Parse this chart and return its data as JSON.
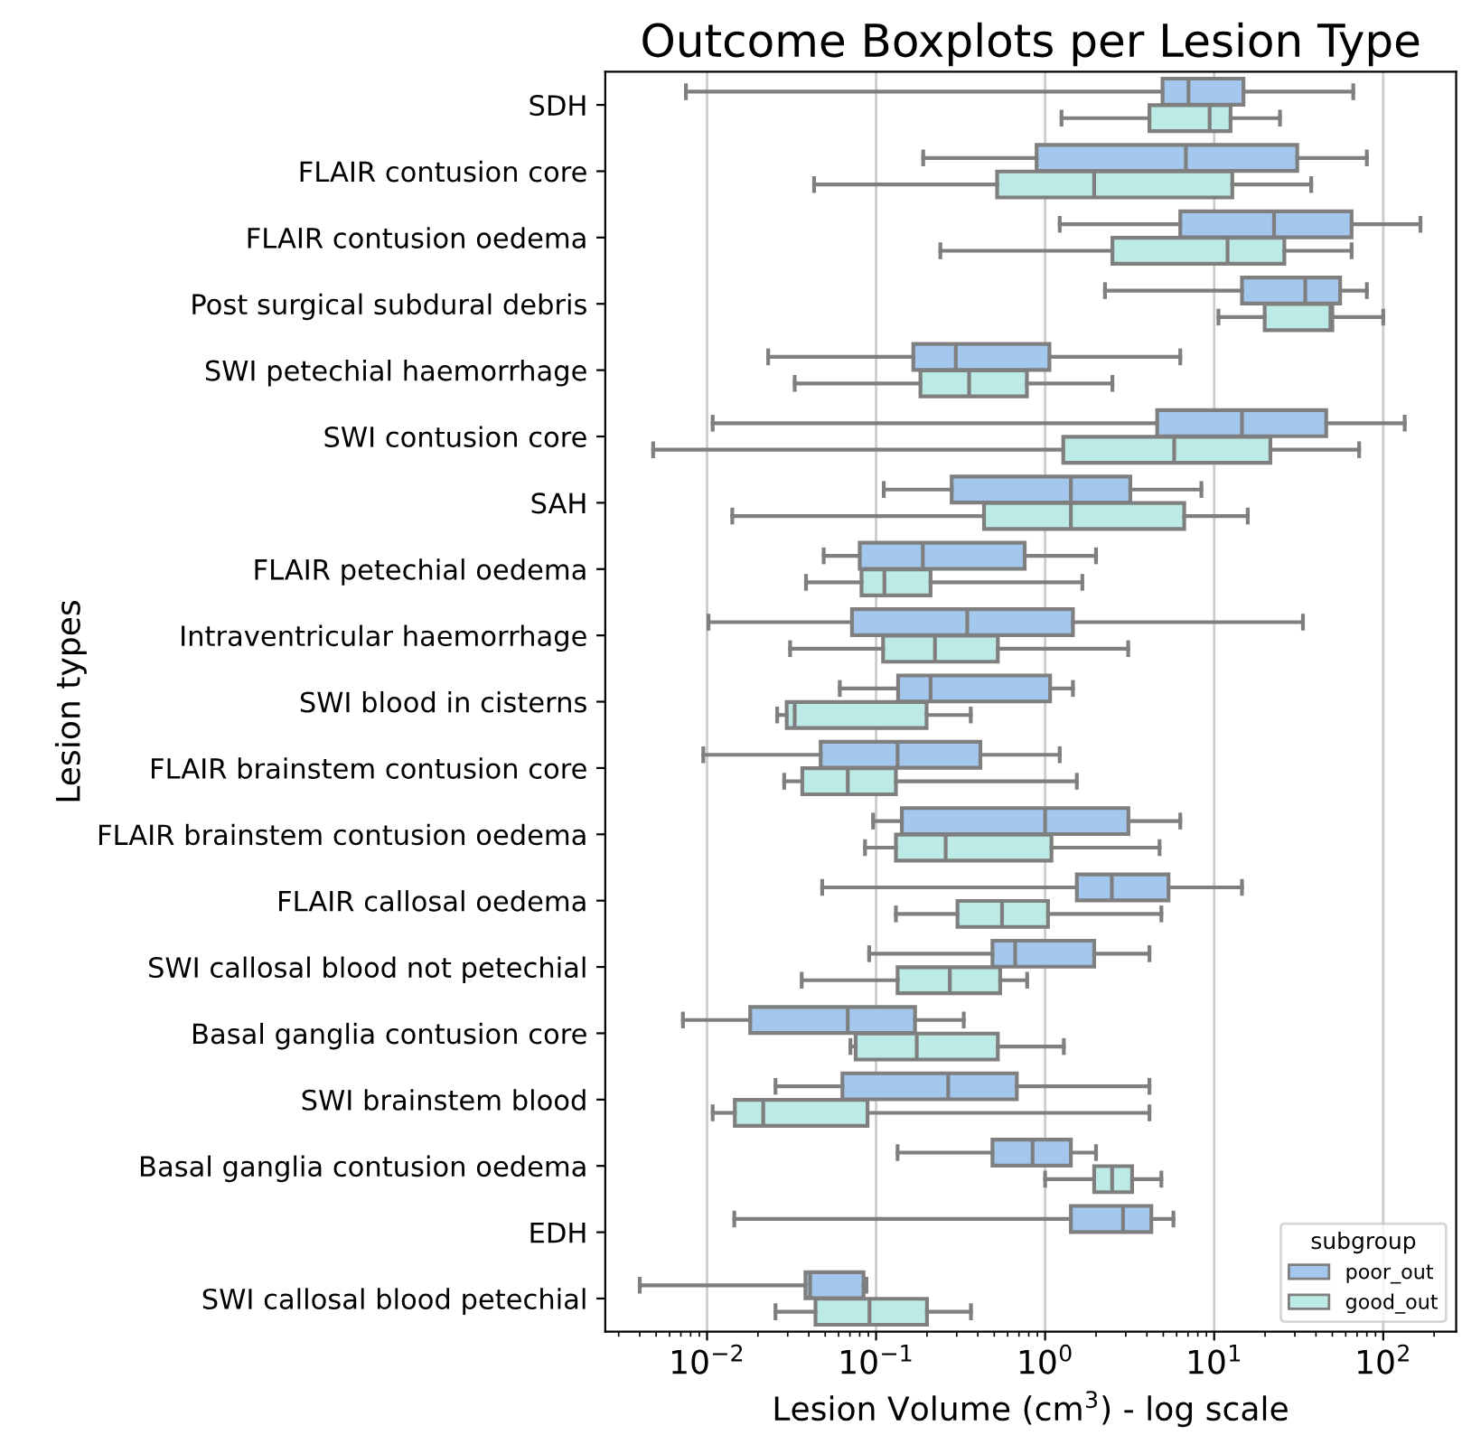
{
  "chart_data": {
    "type": "box",
    "orientation": "horizontal",
    "title": "Outcome Boxplots per Lesion Type",
    "xlabel": "Lesion Volume (cm$^{3}$) - log scale",
    "ylabel": "Lesion types",
    "legend_title": "subgroup",
    "legend": "bottom right",
    "grid": "x",
    "log": "x",
    "categories": [
      "SDH",
      "FLAIR contusion core",
      "FLAIR contusion oedema",
      "Post surgical subdural debris",
      "SWI petechial haemorrhage",
      "SWI contusion core",
      "SAH",
      "FLAIR petechial oedema",
      "Intraventricular haemorrhage",
      "SWI blood in cisterns",
      "FLAIR brainstem contusion core",
      "FLAIR brainstem contusion oedema",
      "FLAIR callosal oedema",
      "SWI callosal blood not petechial",
      "Basal ganglia contusion core",
      "SWI brainstem blood",
      "Basal ganglia contusion oedema",
      "EDH",
      "SWI callosal blood petechial"
    ],
    "xlim": [
      0.0025,
      270
    ],
    "xticks": [
      {
        "value": 0.01,
        "label": "10$^{−2}$"
      },
      {
        "value": 0.1,
        "label": "10$^{−1}$"
      },
      {
        "value": 1,
        "label": "10$^{0}$"
      },
      {
        "value": 10,
        "label": "10$^{1}$"
      },
      {
        "value": 100,
        "label": "10$^{2}$"
      }
    ],
    "series": [
      {
        "name": "poor_out",
        "color": "#a4c7ee",
        "boxes": [
          {
            "low": 0.0075,
            "q1": 4.95,
            "median": 7.05,
            "q3": 14.9,
            "high": 66.5
          },
          {
            "low": 0.19,
            "q1": 0.89,
            "median": 6.8,
            "q3": 31,
            "high": 80
          },
          {
            "low": 1.22,
            "q1": 6.3,
            "median": 22.6,
            "q3": 65,
            "high": 166
          },
          {
            "low": 2.26,
            "q1": 14.6,
            "median": 34.6,
            "q3": 55.6,
            "high": 80
          },
          {
            "low": 0.023,
            "q1": 0.166,
            "median": 0.296,
            "q3": 1.06,
            "high": 6.3
          },
          {
            "low": 0.0108,
            "q1": 4.6,
            "median": 14.6,
            "q3": 46,
            "high": 134
          },
          {
            "low": 0.111,
            "q1": 0.28,
            "median": 1.42,
            "q3": 3.19,
            "high": 8.4
          },
          {
            "low": 0.049,
            "q1": 0.08,
            "median": 0.189,
            "q3": 0.757,
            "high": 2.0
          },
          {
            "low": 0.0102,
            "q1": 0.072,
            "median": 0.346,
            "q3": 1.46,
            "high": 33.5
          },
          {
            "low": 0.061,
            "q1": 0.135,
            "median": 0.21,
            "q3": 1.07,
            "high": 1.46
          },
          {
            "low": 0.0095,
            "q1": 0.047,
            "median": 0.134,
            "q3": 0.414,
            "high": 1.22
          },
          {
            "low": 0.096,
            "q1": 0.142,
            "median": 1.0,
            "q3": 3.11,
            "high": 6.3
          },
          {
            "low": 0.048,
            "q1": 1.54,
            "median": 2.48,
            "q3": 5.37,
            "high": 14.6
          },
          {
            "low": 0.091,
            "q1": 0.488,
            "median": 0.665,
            "q3": 1.95,
            "high": 4.14
          },
          {
            "low": 0.0072,
            "q1": 0.018,
            "median": 0.068,
            "q3": 0.17,
            "high": 0.33
          },
          {
            "low": 0.0254,
            "q1": 0.0632,
            "median": 0.267,
            "q3": 0.68,
            "high": 4.14
          },
          {
            "low": 0.134,
            "q1": 0.488,
            "median": 0.843,
            "q3": 1.42,
            "high": 2.0
          },
          {
            "low": 0.0145,
            "q1": 1.42,
            "median": 2.89,
            "q3": 4.25,
            "high": 5.74
          },
          {
            "low": 0.004,
            "q1": 0.0382,
            "median": 0.0407,
            "q3": 0.0843,
            "high": 0.0877
          }
        ]
      },
      {
        "name": "good_out",
        "color": "#bcebe6",
        "boxes": [
          {
            "low": 1.25,
            "q1": 4.14,
            "median": 9.4,
            "q3": 12.5,
            "high": 24.5
          },
          {
            "low": 0.043,
            "q1": 0.52,
            "median": 1.95,
            "q3": 12.8,
            "high": 37.5
          },
          {
            "low": 0.24,
            "q1": 2.5,
            "median": 12,
            "q3": 26,
            "high": 65
          },
          {
            "low": 10.6,
            "q1": 19.9,
            "median": 48.7,
            "q3": 50,
            "high": 100
          },
          {
            "low": 0.033,
            "q1": 0.183,
            "median": 0.355,
            "q3": 0.78,
            "high": 2.5
          },
          {
            "low": 0.0048,
            "q1": 1.28,
            "median": 5.8,
            "q3": 21.5,
            "high": 72
          },
          {
            "low": 0.0141,
            "q1": 0.435,
            "median": 1.42,
            "q3": 6.65,
            "high": 15.8
          },
          {
            "low": 0.0385,
            "q1": 0.082,
            "median": 0.112,
            "q3": 0.21,
            "high": 1.66
          },
          {
            "low": 0.031,
            "q1": 0.11,
            "median": 0.223,
            "q3": 0.525,
            "high": 3.1
          },
          {
            "low": 0.026,
            "q1": 0.0296,
            "median": 0.033,
            "q3": 0.199,
            "high": 0.363
          },
          {
            "low": 0.0286,
            "q1": 0.0366,
            "median": 0.068,
            "q3": 0.131,
            "high": 1.54
          },
          {
            "low": 0.086,
            "q1": 0.131,
            "median": 0.258,
            "q3": 1.09,
            "high": 4.75
          },
          {
            "low": 0.131,
            "q1": 0.303,
            "median": 0.556,
            "q3": 1.04,
            "high": 4.87
          },
          {
            "low": 0.0363,
            "q1": 0.134,
            "median": 0.273,
            "q3": 0.542,
            "high": 0.783
          },
          {
            "low": 0.0705,
            "q1": 0.0757,
            "median": 0.174,
            "q3": 0.525,
            "high": 1.29
          },
          {
            "low": 0.0108,
            "q1": 0.0146,
            "median": 0.0215,
            "q3": 0.089,
            "high": 4.14
          },
          {
            "low": 1.0,
            "q1": 1.95,
            "median": 2.49,
            "q3": 3.27,
            "high": 4.87
          },
          null,
          {
            "low": 0.0254,
            "q1": 0.0438,
            "median": 0.0914,
            "q3": 0.2,
            "high": 0.364
          }
        ]
      }
    ]
  }
}
